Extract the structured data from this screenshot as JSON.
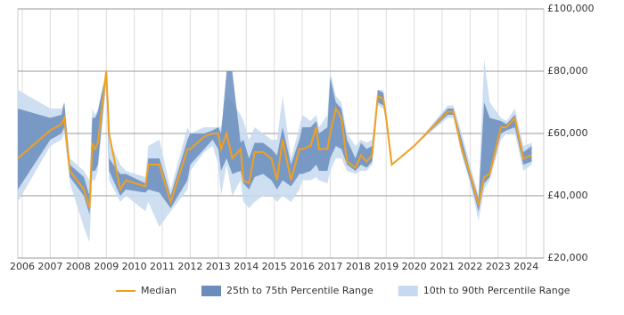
{
  "chart_data": {
    "type": "line",
    "x": [
      2005.84,
      2007.0,
      2007.4,
      2007.5,
      2007.7,
      2008.2,
      2008.4,
      2008.5,
      2008.6,
      2008.7,
      2009.0,
      2009.1,
      2009.5,
      2009.7,
      2010.4,
      2010.5,
      2010.9,
      2011.3,
      2011.9,
      2012.0,
      2012.5,
      2012.8,
      2013.0,
      2013.1,
      2013.3,
      2013.5,
      2013.8,
      2013.9,
      2014.1,
      2014.3,
      2014.6,
      2014.9,
      2015.1,
      2015.3,
      2015.6,
      2015.9,
      2016.0,
      2016.3,
      2016.5,
      2016.6,
      2016.9,
      2017.0,
      2017.2,
      2017.4,
      2017.6,
      2017.9,
      2018.1,
      2018.3,
      2018.5,
      2018.7,
      2018.9,
      2019.0,
      2019.2,
      2020.0,
      2021.2,
      2021.4,
      2021.7,
      2022.0,
      2022.3,
      2022.5,
      2022.7,
      2023.1,
      2023.3,
      2023.6,
      2023.9,
      2024.2
    ],
    "series": [
      {
        "name": "10th to 90th Percentile Range",
        "color": "#c6d9ee",
        "low": [
          38000,
          56000,
          58000,
          60000,
          44000,
          30000,
          25000,
          45000,
          45000,
          48000,
          76000,
          45000,
          38000,
          40000,
          35000,
          38000,
          30000,
          35000,
          42000,
          48000,
          54000,
          56000,
          50000,
          40000,
          50000,
          40000,
          45000,
          38000,
          36000,
          38000,
          40000,
          40000,
          38000,
          40000,
          38000,
          42000,
          45000,
          45000,
          46000,
          45000,
          44000,
          48000,
          52000,
          52000,
          48000,
          47000,
          48000,
          48000,
          50000,
          69000,
          68000,
          63000,
          50000,
          56000,
          65000,
          65000,
          53000,
          44000,
          32000,
          42000,
          45000,
          58000,
          60000,
          60000,
          48000,
          50000
        ],
        "high": [
          74000,
          68000,
          68000,
          70000,
          52000,
          48000,
          45000,
          68000,
          66000,
          68000,
          80000,
          58000,
          50000,
          48000,
          46000,
          56000,
          58000,
          42000,
          62000,
          60000,
          62000,
          62000,
          62000,
          62000,
          72000,
          70000,
          66000,
          64000,
          58000,
          62000,
          60000,
          58000,
          58000,
          72000,
          52000,
          62000,
          66000,
          64000,
          66000,
          62000,
          66000,
          80000,
          72000,
          70000,
          60000,
          56000,
          58000,
          57000,
          58000,
          74000,
          74000,
          67000,
          50000,
          56000,
          69000,
          69000,
          60000,
          50000,
          40000,
          84000,
          70000,
          65000,
          64000,
          68000,
          56000,
          57000
        ]
      },
      {
        "name": "25th to 75th Percentile Range",
        "color": "#6a8dbd",
        "low": [
          42000,
          58000,
          60000,
          62000,
          46000,
          40000,
          34000,
          48000,
          48000,
          50000,
          78000,
          48000,
          40000,
          42000,
          41000,
          42000,
          41000,
          36000,
          45000,
          50000,
          55000,
          58000,
          55000,
          48000,
          52000,
          47000,
          48000,
          44000,
          42000,
          46000,
          47000,
          45000,
          42000,
          45000,
          43000,
          47000,
          47000,
          48000,
          50000,
          48000,
          48000,
          52000,
          56000,
          55000,
          50000,
          48000,
          50000,
          49000,
          51000,
          70000,
          69000,
          64000,
          50000,
          56000,
          66000,
          66000,
          54000,
          45000,
          35000,
          44000,
          46000,
          60000,
          61000,
          62000,
          50000,
          51000
        ],
        "high": [
          68000,
          65000,
          66000,
          70000,
          50000,
          46000,
          40000,
          65000,
          65000,
          67000,
          80000,
          52000,
          47000,
          47000,
          44000,
          52000,
          52000,
          40000,
          58000,
          60000,
          60000,
          61000,
          62000,
          60000,
          80000,
          80000,
          57000,
          58000,
          52000,
          57000,
          57000,
          55000,
          53000,
          62000,
          50000,
          58000,
          62000,
          62000,
          64000,
          60000,
          62000,
          78000,
          70000,
          68000,
          58000,
          52000,
          57000,
          55000,
          56000,
          74000,
          73000,
          66000,
          50000,
          56000,
          68000,
          68000,
          58000,
          48000,
          39000,
          70000,
          65000,
          64000,
          63000,
          66000,
          54000,
          56000
        ]
      },
      {
        "name": "Median",
        "color": "#f0a020",
        "values": [
          52000,
          61000,
          63000,
          65000,
          48000,
          42000,
          36000,
          57000,
          55000,
          57000,
          80000,
          60000,
          42000,
          45000,
          43000,
          50000,
          50000,
          38000,
          55000,
          55000,
          59000,
          60000,
          60000,
          55000,
          60000,
          52000,
          55000,
          45000,
          44000,
          54000,
          54000,
          52000,
          45000,
          58000,
          45000,
          55000,
          55000,
          56000,
          62000,
          55000,
          55000,
          60000,
          68000,
          65000,
          51000,
          49000,
          53000,
          51000,
          53000,
          72000,
          71000,
          65000,
          50000,
          56000,
          67000,
          67000,
          55000,
          47000,
          37000,
          46000,
          47000,
          62000,
          62000,
          65000,
          52000,
          53000
        ]
      }
    ],
    "xlim": [
      2005.84,
      2024.63
    ],
    "xticks": [
      2006,
      2007,
      2008,
      2009,
      2010,
      2011,
      2012,
      2013,
      2014,
      2015,
      2016,
      2017,
      2018,
      2019,
      2020,
      2021,
      2022,
      2023,
      2024
    ],
    "ylim": [
      20000,
      100000
    ],
    "yticks": [
      {
        "value": 20000,
        "label": "£20,000"
      },
      {
        "value": 40000,
        "label": "£40,000"
      },
      {
        "value": 60000,
        "label": "£60,000"
      },
      {
        "value": 80000,
        "label": "£80,000"
      },
      {
        "value": 100000,
        "label": "£100,000"
      }
    ],
    "grid": true,
    "legend": "bottom"
  }
}
